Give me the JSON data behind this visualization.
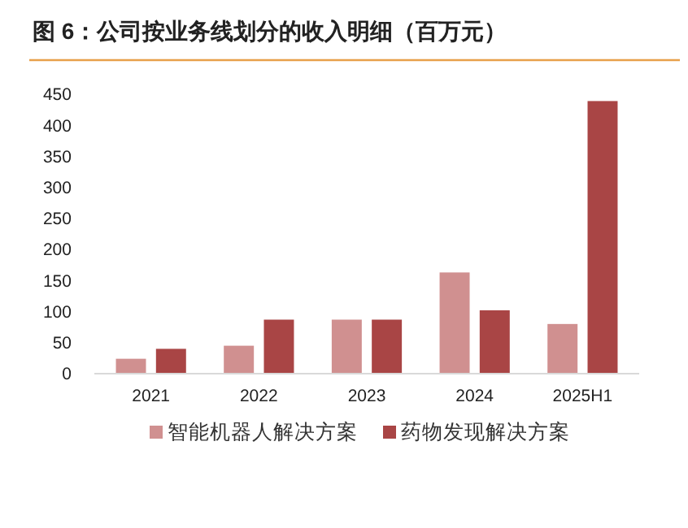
{
  "chart_data": {
    "type": "bar",
    "title": "图 6：公司按业务线划分的收入明细（百万元）",
    "categories": [
      "2021",
      "2022",
      "2023",
      "2024",
      "2025H1"
    ],
    "series": [
      {
        "name": "智能机器人解决方案",
        "color": "#d09090",
        "values": [
          24,
          45,
          87,
          163,
          80
        ]
      },
      {
        "name": "药物发现解决方案",
        "color": "#a94545",
        "values": [
          40,
          87,
          87,
          102,
          439
        ]
      }
    ],
    "ylim": [
      0,
      450
    ],
    "yticks": [
      0,
      50,
      100,
      150,
      200,
      250,
      300,
      350,
      400,
      450
    ],
    "legend": "bottom"
  }
}
